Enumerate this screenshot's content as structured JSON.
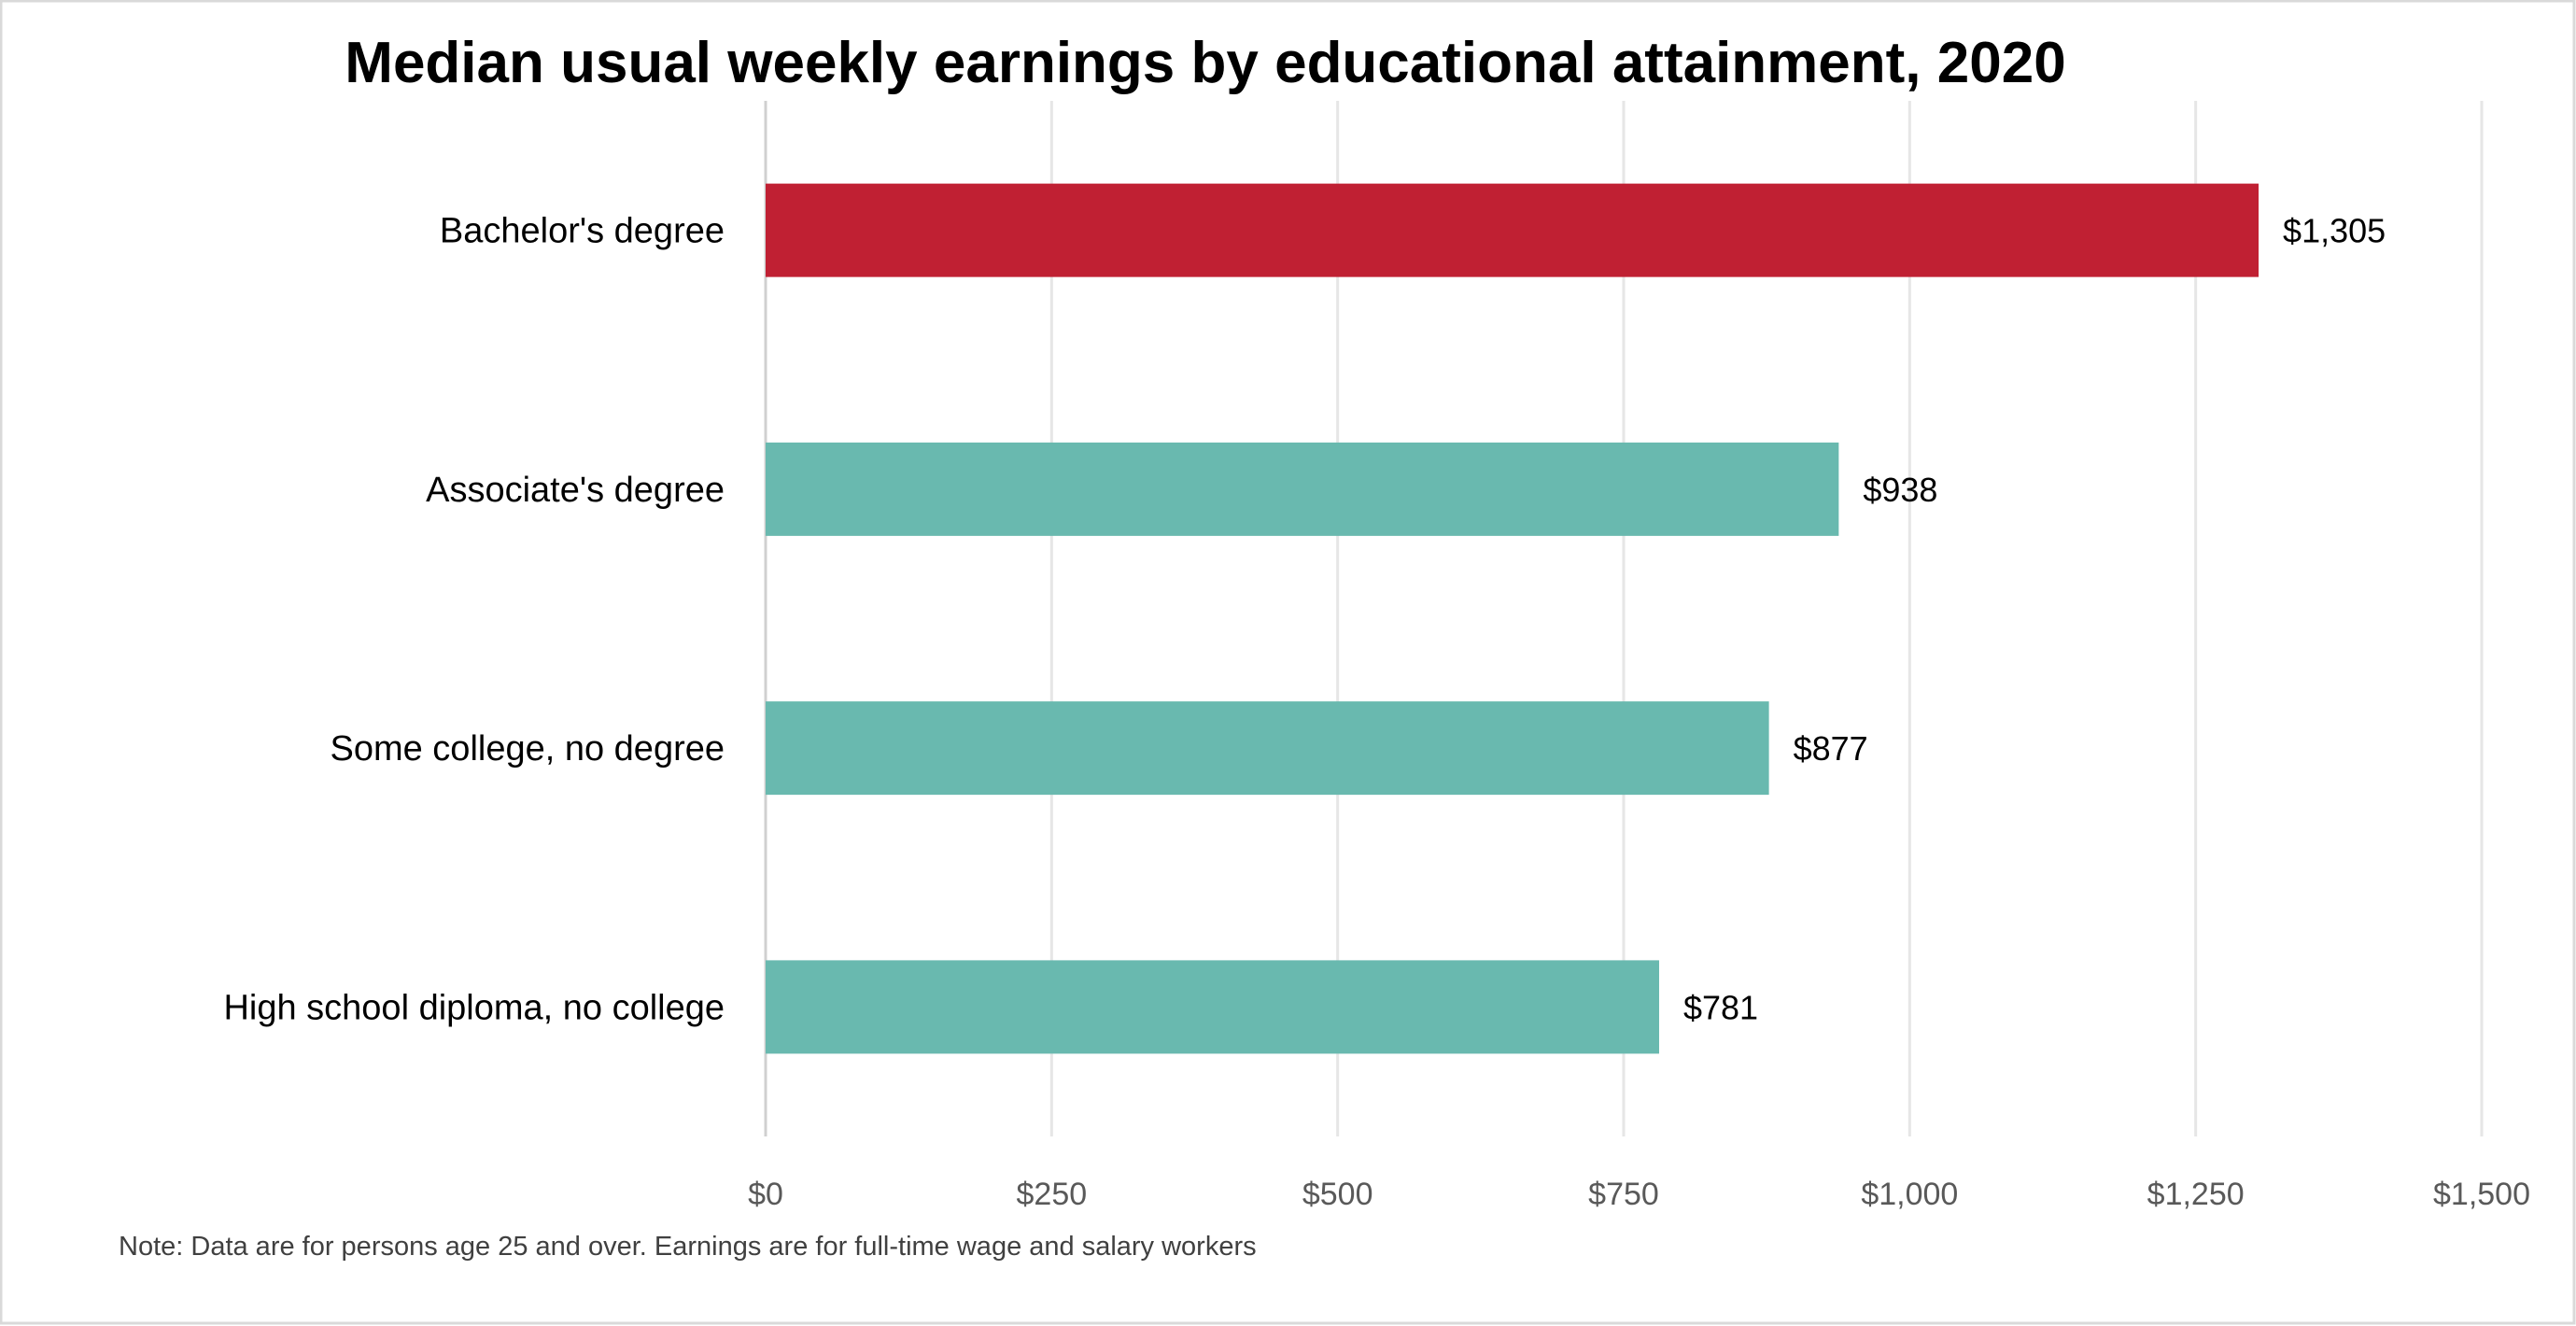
{
  "chart_data": {
    "type": "bar",
    "orientation": "horizontal",
    "title": "Median usual weekly earnings by educational attainment, 2020",
    "categories": [
      "Bachelor's degree",
      "Associate's degree",
      "Some college, no degree",
      "High school diploma, no college"
    ],
    "values": [
      1305,
      938,
      877,
      781
    ],
    "data_labels": [
      "$1,305",
      "$938",
      "$877",
      "$781"
    ],
    "colors": [
      "#C02033",
      "#69B9AF",
      "#69B9AF",
      "#69B9AF"
    ],
    "xlim": [
      0,
      1500
    ],
    "xticks": [
      0,
      250,
      500,
      750,
      1000,
      1250,
      1500
    ],
    "xtick_labels": [
      "$0",
      "$250",
      "$500",
      "$750",
      "$1,000",
      "$1,250",
      "$1,500"
    ],
    "xlabel": "",
    "ylabel": "",
    "grid": "vertical",
    "note": "Note: Data are for persons age 25 and over. Earnings are for full-time wage and salary workers"
  }
}
